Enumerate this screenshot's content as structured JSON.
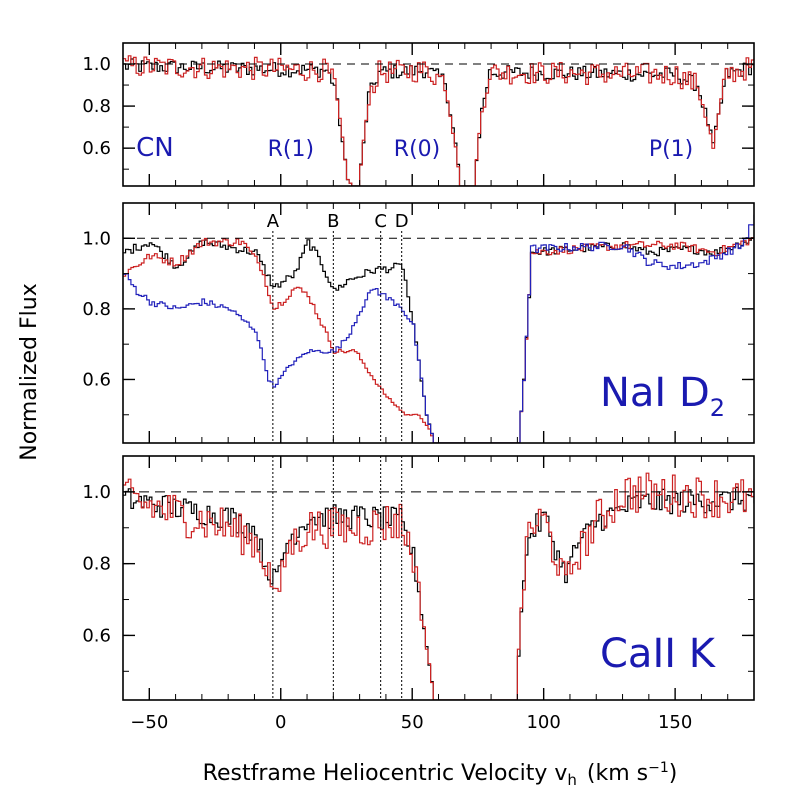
{
  "chart_data": {
    "type": "line",
    "x_axis": {
      "label_prefix": "Restframe Heliocentric Velocity v",
      "label_sub": "h",
      "label_unit_pre": "(km s",
      "label_unit_sup": "−1",
      "label_unit_post": ")",
      "xlim": [
        -60,
        180
      ],
      "ticks": [
        -50,
        0,
        50,
        100,
        150
      ],
      "tick_labels": [
        "−50",
        "0",
        "50",
        "100",
        "150"
      ]
    },
    "y_axis": {
      "label": "Normalized Flux"
    },
    "reference_line": 1.0,
    "components": [
      {
        "label": "A",
        "velocity": -3
      },
      {
        "label": "B",
        "velocity": 20
      },
      {
        "label": "C",
        "velocity": 38
      },
      {
        "label": "D",
        "velocity": 46
      }
    ],
    "colors": {
      "black": "#000000",
      "red": "#cc2222",
      "blue": "#2222bb",
      "species": "#1a1ab0"
    },
    "panels": [
      {
        "id": "cn",
        "ylim": [
          0.42,
          1.1
        ],
        "yticks": [
          1.0,
          0.8,
          0.6
        ],
        "ytick_labels": [
          "1.0",
          "0.8",
          "0.6"
        ],
        "species_labels": [
          {
            "text": "CN",
            "velocity": -55,
            "level": 0.6
          },
          {
            "text": "R(1)",
            "velocity": -5,
            "level": 0.6
          },
          {
            "text": "R(0)",
            "velocity": 43,
            "level": 0.6
          },
          {
            "text": "P(1)",
            "velocity": 140,
            "level": 0.6
          }
        ],
        "series": [
          {
            "color": "#000000",
            "noise": 0.035,
            "base": [
              [
                -60,
                0.99
              ],
              [
                -20,
                0.98
              ],
              [
                17,
                0.97
              ],
              [
                20,
                0.9
              ],
              [
                22,
                0.72
              ],
              [
                25,
                0.45
              ],
              [
                27,
                0.42
              ],
              [
                29,
                0.42
              ],
              [
                31,
                0.62
              ],
              [
                33,
                0.85
              ],
              [
                37,
                0.96
              ],
              [
                55,
                0.97
              ],
              [
                62,
                0.92
              ],
              [
                66,
                0.62
              ],
              [
                68,
                0.42
              ],
              [
                73,
                0.42
              ],
              [
                76,
                0.78
              ],
              [
                79,
                0.96
              ],
              [
                150,
                0.95
              ],
              [
                158,
                0.9
              ],
              [
                161,
                0.77
              ],
              [
                164,
                0.62
              ],
              [
                166,
                0.75
              ],
              [
                169,
                0.95
              ],
              [
                180,
                0.99
              ]
            ]
          },
          {
            "color": "#cc2222",
            "noise": 0.055,
            "base": [
              [
                -60,
                0.99
              ],
              [
                -20,
                0.98
              ],
              [
                17,
                0.97
              ],
              [
                20,
                0.9
              ],
              [
                22,
                0.72
              ],
              [
                25,
                0.45
              ],
              [
                27,
                0.42
              ],
              [
                29,
                0.42
              ],
              [
                31,
                0.62
              ],
              [
                33,
                0.85
              ],
              [
                37,
                0.96
              ],
              [
                55,
                0.97
              ],
              [
                62,
                0.92
              ],
              [
                66,
                0.62
              ],
              [
                68,
                0.42
              ],
              [
                73,
                0.42
              ],
              [
                76,
                0.78
              ],
              [
                79,
                0.96
              ],
              [
                150,
                0.95
              ],
              [
                158,
                0.9
              ],
              [
                161,
                0.77
              ],
              [
                164,
                0.6
              ],
              [
                166,
                0.75
              ],
              [
                169,
                0.95
              ],
              [
                180,
                0.99
              ]
            ]
          }
        ]
      },
      {
        "id": "nai",
        "ylim": [
          0.42,
          1.1
        ],
        "yticks": [
          1.0,
          0.8,
          0.6
        ],
        "ytick_labels": [
          "1.0",
          "0.8",
          "0.6"
        ],
        "label_main": "NaI D",
        "label_sub": "2",
        "label_velocity": 118,
        "label_level": 0.5,
        "series": [
          {
            "color": "#000000",
            "noise": 0.012,
            "base": [
              [
                -60,
                0.96
              ],
              [
                -50,
                0.99
              ],
              [
                -40,
                0.92
              ],
              [
                -30,
                0.99
              ],
              [
                -10,
                0.96
              ],
              [
                -3,
                0.86
              ],
              [
                5,
                0.9
              ],
              [
                10,
                0.99
              ],
              [
                15,
                0.93
              ],
              [
                20,
                0.85
              ],
              [
                25,
                0.88
              ],
              [
                35,
                0.91
              ],
              [
                46,
                0.92
              ],
              [
                50,
                0.75
              ],
              [
                55,
                0.5
              ],
              [
                58,
                0.42
              ],
              [
                90,
                0.42
              ],
              [
                92,
                0.6
              ],
              [
                95,
                0.96
              ],
              [
                130,
                0.98
              ],
              [
                140,
                0.96
              ],
              [
                155,
                0.97
              ],
              [
                165,
                0.96
              ],
              [
                180,
                1.0
              ]
            ]
          },
          {
            "color": "#cc2222",
            "noise": 0.012,
            "base": [
              [
                -60,
                0.9
              ],
              [
                -50,
                0.95
              ],
              [
                -40,
                0.93
              ],
              [
                -30,
                0.99
              ],
              [
                -15,
                0.99
              ],
              [
                -8,
                0.92
              ],
              [
                -3,
                0.8
              ],
              [
                0,
                0.82
              ],
              [
                5,
                0.86
              ],
              [
                10,
                0.84
              ],
              [
                15,
                0.76
              ],
              [
                20,
                0.68
              ],
              [
                28,
                0.68
              ],
              [
                35,
                0.6
              ],
              [
                40,
                0.55
              ],
              [
                47,
                0.5
              ],
              [
                52,
                0.5
              ],
              [
                56,
                0.46
              ],
              [
                58,
                0.42
              ],
              [
                90,
                0.42
              ],
              [
                92,
                0.6
              ],
              [
                95,
                0.96
              ],
              [
                130,
                0.98
              ],
              [
                150,
                0.98
              ],
              [
                165,
                0.96
              ],
              [
                180,
                1.0
              ]
            ]
          },
          {
            "color": "#2222bb",
            "noise": 0.012,
            "base": [
              [
                -60,
                0.9
              ],
              [
                -55,
                0.85
              ],
              [
                -50,
                0.82
              ],
              [
                -40,
                0.8
              ],
              [
                -30,
                0.82
              ],
              [
                -20,
                0.8
              ],
              [
                -10,
                0.74
              ],
              [
                -5,
                0.6
              ],
              [
                -3,
                0.58
              ],
              [
                3,
                0.64
              ],
              [
                10,
                0.68
              ],
              [
                20,
                0.68
              ],
              [
                25,
                0.72
              ],
              [
                30,
                0.8
              ],
              [
                35,
                0.86
              ],
              [
                40,
                0.83
              ],
              [
                45,
                0.81
              ],
              [
                50,
                0.75
              ],
              [
                55,
                0.5
              ],
              [
                58,
                0.42
              ],
              [
                90,
                0.42
              ],
              [
                92,
                0.6
              ],
              [
                95,
                0.97
              ],
              [
                130,
                0.98
              ],
              [
                140,
                0.93
              ],
              [
                150,
                0.92
              ],
              [
                160,
                0.93
              ],
              [
                175,
                0.98
              ],
              [
                180,
                1.06
              ]
            ]
          }
        ]
      },
      {
        "id": "cak",
        "ylim": [
          0.42,
          1.1
        ],
        "yticks": [
          1.0,
          0.8,
          0.6
        ],
        "ytick_labels": [
          "1.0",
          "0.8",
          "0.6"
        ],
        "label_main": "CaII K",
        "label_velocity": 140,
        "label_level": 0.55,
        "series": [
          {
            "color": "#000000",
            "noise": 0.035,
            "base": [
              [
                -60,
                0.98
              ],
              [
                -20,
                0.93
              ],
              [
                -10,
                0.89
              ],
              [
                -5,
                0.77
              ],
              [
                -2,
                0.76
              ],
              [
                2,
                0.86
              ],
              [
                10,
                0.93
              ],
              [
                30,
                0.93
              ],
              [
                45,
                0.92
              ],
              [
                50,
                0.82
              ],
              [
                54,
                0.62
              ],
              [
                58,
                0.42
              ],
              [
                89,
                0.42
              ],
              [
                91,
                0.68
              ],
              [
                94,
                0.88
              ],
              [
                100,
                0.93
              ],
              [
                104,
                0.84
              ],
              [
                108,
                0.77
              ],
              [
                112,
                0.85
              ],
              [
                120,
                0.92
              ],
              [
                135,
                0.97
              ],
              [
                180,
                0.98
              ]
            ]
          },
          {
            "color": "#cc2222",
            "noise": 0.06,
            "base": [
              [
                -60,
                0.98
              ],
              [
                -20,
                0.9
              ],
              [
                -10,
                0.86
              ],
              [
                -5,
                0.78
              ],
              [
                -2,
                0.7
              ],
              [
                2,
                0.84
              ],
              [
                10,
                0.9
              ],
              [
                30,
                0.9
              ],
              [
                45,
                0.92
              ],
              [
                50,
                0.82
              ],
              [
                54,
                0.62
              ],
              [
                58,
                0.42
              ],
              [
                89,
                0.42
              ],
              [
                91,
                0.68
              ],
              [
                94,
                0.9
              ],
              [
                100,
                0.92
              ],
              [
                104,
                0.82
              ],
              [
                108,
                0.75
              ],
              [
                112,
                0.82
              ],
              [
                120,
                0.92
              ],
              [
                130,
                1.0
              ],
              [
                180,
                0.98
              ]
            ]
          }
        ]
      }
    ]
  }
}
